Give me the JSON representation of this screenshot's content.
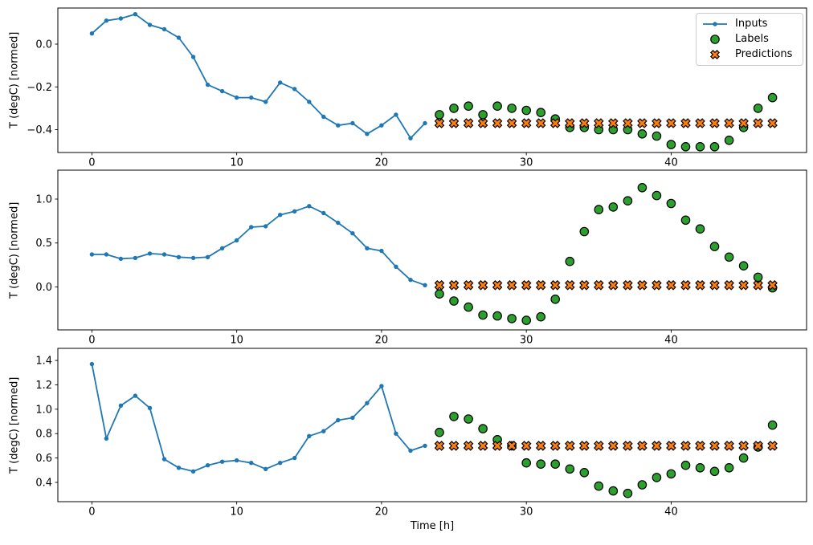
{
  "figure": {
    "xlabel": "Time [h]",
    "background": "#ffffff",
    "legend": {
      "position": "upper right",
      "entries": [
        {
          "label": "Inputs",
          "marker": "line-dot",
          "color": "#1f77b4"
        },
        {
          "label": "Labels",
          "marker": "circle",
          "color": "#2ca02c",
          "edge": "#000000"
        },
        {
          "label": "Predictions",
          "marker": "X",
          "color": "#ff7f0e",
          "edge": "#000000"
        }
      ]
    }
  },
  "chart_data": [
    {
      "type": "line",
      "title": "",
      "ylabel": "T (degC) [normed]",
      "xlabel": "",
      "xlim": [
        -2.35,
        49.35
      ],
      "ylim": [
        -0.507,
        0.169
      ],
      "xticks": [
        0,
        10,
        20,
        30,
        40
      ],
      "yticks": [
        0.0,
        -0.2,
        -0.4
      ],
      "grid": false,
      "series": [
        {
          "name": "Inputs",
          "type": "line",
          "marker": "dot",
          "color": "#1f77b4",
          "x": [
            0,
            1,
            2,
            3,
            4,
            5,
            6,
            7,
            8,
            9,
            10,
            11,
            12,
            13,
            14,
            15,
            16,
            17,
            18,
            19,
            20,
            21,
            22,
            23
          ],
          "values": [
            0.05,
            0.11,
            0.12,
            0.14,
            0.09,
            0.07,
            0.03,
            -0.06,
            -0.19,
            -0.22,
            -0.25,
            -0.25,
            -0.27,
            -0.18,
            -0.21,
            -0.27,
            -0.34,
            -0.38,
            -0.37,
            -0.42,
            -0.38,
            -0.33,
            -0.44,
            -0.37
          ]
        },
        {
          "name": "Labels",
          "type": "scatter-circle",
          "marker": "circle",
          "color": "#2ca02c",
          "edge": "#000000",
          "x": [
            24,
            25,
            26,
            27,
            28,
            29,
            30,
            31,
            32,
            33,
            34,
            35,
            36,
            37,
            38,
            39,
            40,
            41,
            42,
            43,
            44,
            45,
            46,
            47
          ],
          "values": [
            -0.33,
            -0.3,
            -0.29,
            -0.33,
            -0.29,
            -0.3,
            -0.31,
            -0.32,
            -0.35,
            -0.39,
            -0.39,
            -0.4,
            -0.4,
            -0.4,
            -0.42,
            -0.43,
            -0.47,
            -0.48,
            -0.48,
            -0.48,
            -0.45,
            -0.39,
            -0.3,
            -0.25
          ]
        },
        {
          "name": "Predictions",
          "type": "scatter-x",
          "marker": "X",
          "color": "#ff7f0e",
          "edge": "#000000",
          "x": [
            24,
            25,
            26,
            27,
            28,
            29,
            30,
            31,
            32,
            33,
            34,
            35,
            36,
            37,
            38,
            39,
            40,
            41,
            42,
            43,
            44,
            45,
            46,
            47
          ],
          "values": [
            -0.37,
            -0.37,
            -0.37,
            -0.37,
            -0.37,
            -0.37,
            -0.37,
            -0.37,
            -0.37,
            -0.37,
            -0.37,
            -0.37,
            -0.37,
            -0.37,
            -0.37,
            -0.37,
            -0.37,
            -0.37,
            -0.37,
            -0.37,
            -0.37,
            -0.37,
            -0.37,
            -0.37
          ]
        }
      ]
    },
    {
      "type": "line",
      "title": "",
      "ylabel": "T (degC) [normed]",
      "xlabel": "",
      "xlim": [
        -2.35,
        49.35
      ],
      "ylim": [
        -0.489,
        1.329
      ],
      "xticks": [
        0,
        10,
        20,
        30,
        40
      ],
      "yticks": [
        1.0,
        0.5,
        0.0
      ],
      "grid": false,
      "series": [
        {
          "name": "Inputs",
          "type": "line",
          "marker": "dot",
          "color": "#1f77b4",
          "x": [
            0,
            1,
            2,
            3,
            4,
            5,
            6,
            7,
            8,
            9,
            10,
            11,
            12,
            13,
            14,
            15,
            16,
            17,
            18,
            19,
            20,
            21,
            22,
            23
          ],
          "values": [
            0.37,
            0.37,
            0.32,
            0.33,
            0.38,
            0.37,
            0.34,
            0.33,
            0.34,
            0.44,
            0.53,
            0.68,
            0.69,
            0.82,
            0.86,
            0.92,
            0.84,
            0.73,
            0.61,
            0.44,
            0.41,
            0.23,
            0.08,
            0.02
          ]
        },
        {
          "name": "Labels",
          "type": "scatter-circle",
          "marker": "circle",
          "color": "#2ca02c",
          "edge": "#000000",
          "x": [
            24,
            25,
            26,
            27,
            28,
            29,
            30,
            31,
            32,
            33,
            34,
            35,
            36,
            37,
            38,
            39,
            40,
            41,
            42,
            43,
            44,
            45,
            46,
            47
          ],
          "values": [
            -0.08,
            -0.16,
            -0.23,
            -0.32,
            -0.33,
            -0.36,
            -0.38,
            -0.34,
            -0.14,
            0.29,
            0.63,
            0.88,
            0.91,
            0.98,
            1.13,
            1.04,
            0.95,
            0.76,
            0.66,
            0.46,
            0.34,
            0.24,
            0.11,
            -0.01
          ]
        },
        {
          "name": "Predictions",
          "type": "scatter-x",
          "marker": "X",
          "color": "#ff7f0e",
          "edge": "#000000",
          "x": [
            24,
            25,
            26,
            27,
            28,
            29,
            30,
            31,
            32,
            33,
            34,
            35,
            36,
            37,
            38,
            39,
            40,
            41,
            42,
            43,
            44,
            45,
            46,
            47
          ],
          "values": [
            0.02,
            0.02,
            0.02,
            0.02,
            0.02,
            0.02,
            0.02,
            0.02,
            0.02,
            0.02,
            0.02,
            0.02,
            0.02,
            0.02,
            0.02,
            0.02,
            0.02,
            0.02,
            0.02,
            0.02,
            0.02,
            0.02,
            0.02,
            0.02
          ]
        }
      ]
    },
    {
      "type": "line",
      "title": "",
      "ylabel": "T (degC) [normed]",
      "xlabel": "Time [h]",
      "xlim": [
        -2.35,
        49.35
      ],
      "ylim": [
        0.242,
        1.499
      ],
      "xticks": [
        0,
        10,
        20,
        30,
        40
      ],
      "yticks": [
        1.4,
        1.2,
        1.0,
        0.8,
        0.6,
        0.4
      ],
      "grid": false,
      "series": [
        {
          "name": "Inputs",
          "type": "line",
          "marker": "dot",
          "color": "#1f77b4",
          "x": [
            0,
            1,
            2,
            3,
            4,
            5,
            6,
            7,
            8,
            9,
            10,
            11,
            12,
            13,
            14,
            15,
            16,
            17,
            18,
            19,
            20,
            21,
            22,
            23
          ],
          "values": [
            1.37,
            0.76,
            1.03,
            1.11,
            1.01,
            0.59,
            0.52,
            0.49,
            0.54,
            0.57,
            0.58,
            0.56,
            0.51,
            0.56,
            0.6,
            0.78,
            0.82,
            0.91,
            0.93,
            1.05,
            1.19,
            0.8,
            0.66,
            0.7
          ]
        },
        {
          "name": "Labels",
          "type": "scatter-circle",
          "marker": "circle",
          "color": "#2ca02c",
          "edge": "#000000",
          "x": [
            24,
            25,
            26,
            27,
            28,
            29,
            30,
            31,
            32,
            33,
            34,
            35,
            36,
            37,
            38,
            39,
            40,
            41,
            42,
            43,
            44,
            45,
            46,
            47
          ],
          "values": [
            0.81,
            0.94,
            0.92,
            0.84,
            0.75,
            0.7,
            0.56,
            0.55,
            0.55,
            0.51,
            0.48,
            0.37,
            0.33,
            0.31,
            0.38,
            0.44,
            0.47,
            0.54,
            0.52,
            0.49,
            0.52,
            0.6,
            0.69,
            0.87
          ]
        },
        {
          "name": "Predictions",
          "type": "scatter-x",
          "marker": "X",
          "color": "#ff7f0e",
          "edge": "#000000",
          "x": [
            24,
            25,
            26,
            27,
            28,
            29,
            30,
            31,
            32,
            33,
            34,
            35,
            36,
            37,
            38,
            39,
            40,
            41,
            42,
            43,
            44,
            45,
            46,
            47
          ],
          "values": [
            0.7,
            0.7,
            0.7,
            0.7,
            0.7,
            0.7,
            0.7,
            0.7,
            0.7,
            0.7,
            0.7,
            0.7,
            0.7,
            0.7,
            0.7,
            0.7,
            0.7,
            0.7,
            0.7,
            0.7,
            0.7,
            0.7,
            0.7,
            0.7
          ]
        }
      ]
    }
  ]
}
